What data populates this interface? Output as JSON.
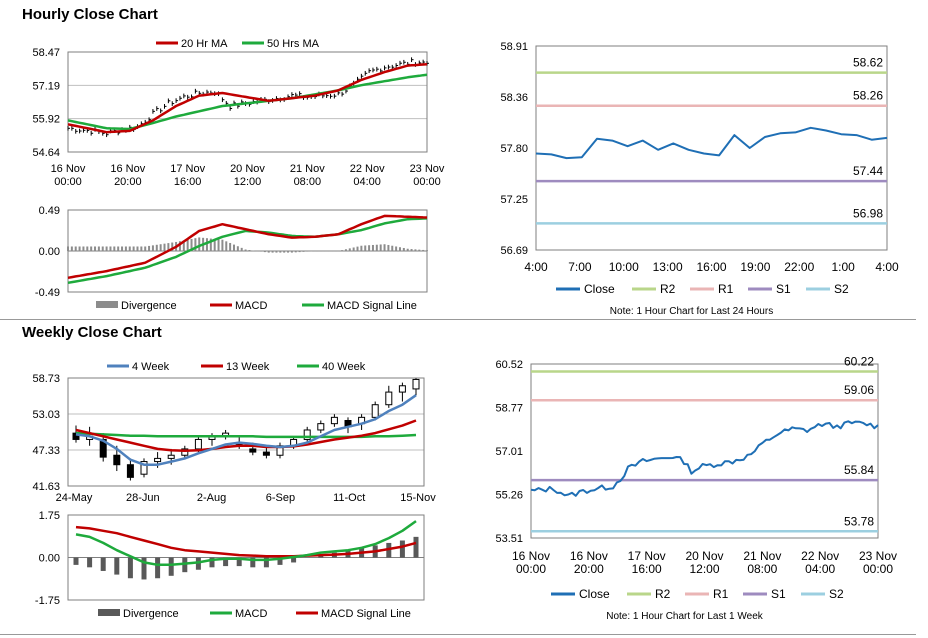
{
  "sections": {
    "hourly_title": "Hourly Close Chart",
    "weekly_title": "Weekly Close Chart"
  },
  "colors": {
    "price": "#000000",
    "ma_red": "#c00000",
    "ma_green": "#1eaa3c",
    "ma_blue": "#4f81bd",
    "divergence": "#8c8c8c",
    "close": "#1f6fb5",
    "r2": "#b9d68a",
    "r1": "#eab5b5",
    "s1": "#9e8bbf",
    "s2": "#9ccfe0",
    "grid": "#7f7f7f"
  },
  "chart_data": [
    {
      "id": "hourly_price",
      "type": "line",
      "ylim": [
        54.64,
        58.47
      ],
      "yticks": [
        "58.47",
        "57.19",
        "55.92",
        "54.64"
      ],
      "xticks": [
        "16 Nov\n00:00",
        "16 Nov\n20:00",
        "17 Nov\n16:00",
        "20 Nov\n12:00",
        "21 Nov\n08:00",
        "22 Nov\n04:00",
        "23 Nov\n00:00"
      ],
      "legend": [
        "20 Hr MA",
        "50 Hrs MA"
      ],
      "price_anchors": [
        [
          0,
          55.55
        ],
        [
          6,
          55.45
        ],
        [
          10,
          55.35
        ],
        [
          14,
          55.5
        ],
        [
          18,
          55.6
        ],
        [
          22,
          56.1
        ],
        [
          26,
          56.5
        ],
        [
          30,
          56.75
        ],
        [
          34,
          56.9
        ],
        [
          38,
          56.95
        ],
        [
          42,
          56.4
        ],
        [
          46,
          56.5
        ],
        [
          50,
          56.6
        ],
        [
          54,
          56.7
        ],
        [
          58,
          56.8
        ],
        [
          62,
          56.75
        ],
        [
          66,
          56.8
        ],
        [
          70,
          56.85
        ],
        [
          74,
          57.2
        ],
        [
          78,
          57.7
        ],
        [
          82,
          57.9
        ],
        [
          86,
          58.0
        ],
        [
          90,
          58.1
        ],
        [
          93,
          58.05
        ]
      ],
      "ma20_anchors": [
        [
          0,
          55.7
        ],
        [
          10,
          55.4
        ],
        [
          16,
          55.45
        ],
        [
          22,
          55.85
        ],
        [
          28,
          56.4
        ],
        [
          34,
          56.8
        ],
        [
          40,
          56.9
        ],
        [
          46,
          56.75
        ],
        [
          52,
          56.6
        ],
        [
          58,
          56.7
        ],
        [
          64,
          56.8
        ],
        [
          70,
          57.0
        ],
        [
          76,
          57.4
        ],
        [
          82,
          57.7
        ],
        [
          88,
          57.95
        ],
        [
          93,
          58.0
        ]
      ],
      "ma50_anchors": [
        [
          0,
          55.85
        ],
        [
          10,
          55.55
        ],
        [
          16,
          55.52
        ],
        [
          22,
          55.75
        ],
        [
          28,
          56.0
        ],
        [
          34,
          56.2
        ],
        [
          40,
          56.4
        ],
        [
          46,
          56.5
        ],
        [
          52,
          56.6
        ],
        [
          58,
          56.7
        ],
        [
          64,
          56.85
        ],
        [
          70,
          57.0
        ],
        [
          76,
          57.2
        ],
        [
          82,
          57.35
        ],
        [
          88,
          57.5
        ],
        [
          93,
          57.6
        ]
      ]
    },
    {
      "id": "hourly_macd",
      "type": "bar",
      "ylim": [
        -0.49,
        0.49
      ],
      "yticks": [
        "0.49",
        "0.00",
        "-0.49"
      ],
      "legend": [
        "Divergence",
        "MACD",
        "MACD Signal Line"
      ],
      "macd_anchors": [
        [
          0,
          -0.32
        ],
        [
          10,
          -0.24
        ],
        [
          20,
          -0.14
        ],
        [
          28,
          0.05
        ],
        [
          34,
          0.24
        ],
        [
          40,
          0.32
        ],
        [
          46,
          0.26
        ],
        [
          52,
          0.2
        ],
        [
          58,
          0.16
        ],
        [
          64,
          0.17
        ],
        [
          70,
          0.2
        ],
        [
          76,
          0.32
        ],
        [
          82,
          0.42
        ],
        [
          88,
          0.41
        ],
        [
          93,
          0.4
        ]
      ],
      "signal_anchors": [
        [
          0,
          -0.38
        ],
        [
          10,
          -0.3
        ],
        [
          20,
          -0.2
        ],
        [
          28,
          -0.07
        ],
        [
          34,
          0.06
        ],
        [
          40,
          0.17
        ],
        [
          46,
          0.24
        ],
        [
          52,
          0.22
        ],
        [
          58,
          0.18
        ],
        [
          64,
          0.17
        ],
        [
          70,
          0.2
        ],
        [
          76,
          0.25
        ],
        [
          82,
          0.33
        ],
        [
          88,
          0.38
        ],
        [
          93,
          0.39
        ]
      ]
    },
    {
      "id": "hourly_close",
      "type": "line",
      "ylim": [
        56.69,
        58.91
      ],
      "yticks": [
        "58.91",
        "58.36",
        "57.80",
        "57.25",
        "56.69"
      ],
      "xticks": [
        "4:00",
        "7:00",
        "10:00",
        "13:00",
        "16:00",
        "19:00",
        "22:00",
        "1:00",
        "4:00"
      ],
      "levels": {
        "R2": 58.62,
        "R1": 58.26,
        "S1": 57.44,
        "S2": 56.98
      },
      "level_labels": {
        "R2": "58.62",
        "R1": "58.26",
        "S1": "57.44",
        "S2": "56.98"
      },
      "legend": [
        "Close",
        "R2",
        "R1",
        "S1",
        "S2"
      ],
      "note": "Note: 1 Hour Chart for Last 24 Hours",
      "values": [
        57.74,
        57.73,
        57.69,
        57.7,
        57.9,
        57.88,
        57.82,
        57.88,
        57.78,
        57.85,
        57.78,
        57.74,
        57.72,
        57.94,
        57.8,
        57.92,
        57.96,
        57.97,
        58.02,
        57.99,
        57.95,
        57.94,
        57.89,
        57.91
      ]
    },
    {
      "id": "weekly_price",
      "type": "line",
      "ylim": [
        41.63,
        58.73
      ],
      "yticks": [
        "58.73",
        "53.03",
        "47.33",
        "41.63"
      ],
      "xticks": [
        "24-May",
        "28-Jun",
        "2-Aug",
        "6-Sep",
        "11-Oct",
        "15-Nov"
      ],
      "legend": [
        "4 Week",
        "13 Week",
        "40 Week"
      ],
      "candles": [
        [
          50.0,
          51.2,
          48.5,
          49.0
        ],
        [
          49.0,
          51.0,
          48.0,
          49.5
        ],
        [
          49.0,
          50.0,
          45.5,
          46.2
        ],
        [
          46.5,
          48.0,
          44.0,
          45.0
        ],
        [
          45.0,
          46.0,
          42.5,
          43.0
        ],
        [
          43.5,
          46.0,
          43.0,
          45.5
        ],
        [
          45.5,
          47.0,
          44.5,
          46.0
        ],
        [
          46.0,
          47.5,
          45.0,
          46.5
        ],
        [
          46.5,
          48.0,
          46.0,
          47.5
        ],
        [
          47.5,
          49.5,
          47.0,
          49.0
        ],
        [
          49.0,
          50.0,
          48.0,
          49.5
        ],
        [
          49.5,
          50.5,
          49.0,
          50.0
        ],
        [
          48.5,
          49.5,
          47.5,
          48.0
        ],
        [
          47.5,
          48.5,
          46.5,
          47.0
        ],
        [
          47.0,
          48.0,
          46.0,
          46.5
        ],
        [
          46.5,
          48.5,
          46.0,
          48.0
        ],
        [
          48.0,
          49.5,
          47.5,
          49.0
        ],
        [
          49.0,
          51.0,
          48.5,
          50.5
        ],
        [
          50.5,
          52.0,
          50.0,
          51.5
        ],
        [
          51.5,
          53.0,
          51.0,
          52.5
        ],
        [
          52.0,
          52.5,
          50.0,
          51.0
        ],
        [
          51.5,
          53.0,
          50.5,
          52.5
        ],
        [
          52.5,
          55.0,
          52.0,
          54.5
        ],
        [
          54.5,
          57.5,
          54.0,
          56.5
        ],
        [
          56.5,
          58.0,
          55.0,
          57.5
        ],
        [
          57.0,
          58.7,
          56.0,
          58.5
        ]
      ],
      "ma4": [
        49.8,
        49.5,
        48.8,
        47.5,
        45.8,
        45.0,
        45.0,
        45.5,
        46.0,
        46.8,
        47.5,
        48.2,
        48.5,
        48.3,
        48.0,
        47.8,
        48.0,
        48.5,
        49.5,
        50.5,
        51.0,
        51.5,
        52.2,
        53.5,
        54.5,
        56.0
      ],
      "ma13": [
        50.5,
        50.0,
        49.5,
        49.0,
        48.5,
        48.0,
        47.5,
        47.3,
        47.2,
        47.3,
        47.5,
        47.8,
        48.0,
        48.0,
        47.8,
        47.8,
        47.9,
        48.2,
        48.6,
        49.0,
        49.3,
        49.6,
        50.0,
        50.6,
        51.2,
        52.0
      ],
      "ma40": [
        50.0,
        49.9,
        49.8,
        49.7,
        49.6,
        49.6,
        49.5,
        49.5,
        49.5,
        49.5,
        49.5,
        49.5,
        49.5,
        49.5,
        49.4,
        49.4,
        49.4,
        49.4,
        49.4,
        49.4,
        49.4,
        49.4,
        49.5,
        49.5,
        49.6,
        49.7
      ]
    },
    {
      "id": "weekly_macd",
      "type": "bar",
      "ylim": [
        -1.75,
        1.75
      ],
      "yticks": [
        "1.75",
        "0.00",
        "-1.75"
      ],
      "legend": [
        "Divergence",
        "MACD",
        "MACD Signal Line"
      ],
      "divergence": [
        -0.3,
        -0.4,
        -0.55,
        -0.7,
        -0.85,
        -0.9,
        -0.85,
        -0.75,
        -0.6,
        -0.5,
        -0.4,
        -0.35,
        -0.35,
        -0.4,
        -0.4,
        -0.3,
        -0.2,
        0.0,
        0.1,
        0.2,
        0.3,
        0.4,
        0.5,
        0.6,
        0.7,
        0.85
      ],
      "macd": [
        0.95,
        0.85,
        0.6,
        0.3,
        0.05,
        -0.2,
        -0.3,
        -0.3,
        -0.25,
        -0.2,
        -0.1,
        -0.05,
        -0.05,
        -0.1,
        -0.1,
        -0.05,
        0.02,
        0.1,
        0.2,
        0.25,
        0.3,
        0.4,
        0.55,
        0.8,
        1.1,
        1.5
      ],
      "signal": [
        1.25,
        1.2,
        1.1,
        1.0,
        0.85,
        0.7,
        0.55,
        0.4,
        0.3,
        0.25,
        0.2,
        0.15,
        0.1,
        0.08,
        0.05,
        0.05,
        0.05,
        0.08,
        0.1,
        0.12,
        0.15,
        0.2,
        0.25,
        0.35,
        0.45,
        0.6
      ]
    },
    {
      "id": "weekly_close",
      "type": "line",
      "ylim": [
        53.51,
        60.52
      ],
      "yticks": [
        "60.52",
        "58.77",
        "57.01",
        "55.26",
        "53.51"
      ],
      "xticks": [
        "16 Nov\n00:00",
        "16 Nov\n20:00",
        "17 Nov\n16:00",
        "20 Nov\n12:00",
        "21 Nov\n08:00",
        "22 Nov\n04:00",
        "23 Nov\n00:00"
      ],
      "levels": {
        "R2": 60.22,
        "R1": 59.06,
        "S1": 55.84,
        "S2": 53.78
      },
      "level_labels": {
        "R2": "60.22",
        "R1": "59.06",
        "S1": "55.84",
        "S2": "53.78"
      },
      "legend": [
        "Close",
        "R2",
        "R1",
        "S1",
        "S2"
      ],
      "note": "Note: 1 Hour Chart for Last 1 Week",
      "anchors": [
        [
          0,
          55.4
        ],
        [
          6,
          55.5
        ],
        [
          10,
          55.2
        ],
        [
          14,
          55.4
        ],
        [
          18,
          55.5
        ],
        [
          22,
          55.6
        ],
        [
          24,
          55.9
        ],
        [
          26,
          56.3
        ],
        [
          30,
          56.6
        ],
        [
          34,
          56.7
        ],
        [
          38,
          56.8
        ],
        [
          41,
          56.6
        ],
        [
          43,
          56.2
        ],
        [
          46,
          56.4
        ],
        [
          50,
          56.5
        ],
        [
          54,
          56.6
        ],
        [
          58,
          56.8
        ],
        [
          60,
          57.0
        ],
        [
          62,
          57.3
        ],
        [
          66,
          57.7
        ],
        [
          70,
          57.9
        ],
        [
          74,
          57.85
        ],
        [
          78,
          58.1
        ],
        [
          82,
          58.0
        ],
        [
          86,
          58.15
        ],
        [
          90,
          58.1
        ],
        [
          93,
          58.0
        ]
      ]
    }
  ]
}
